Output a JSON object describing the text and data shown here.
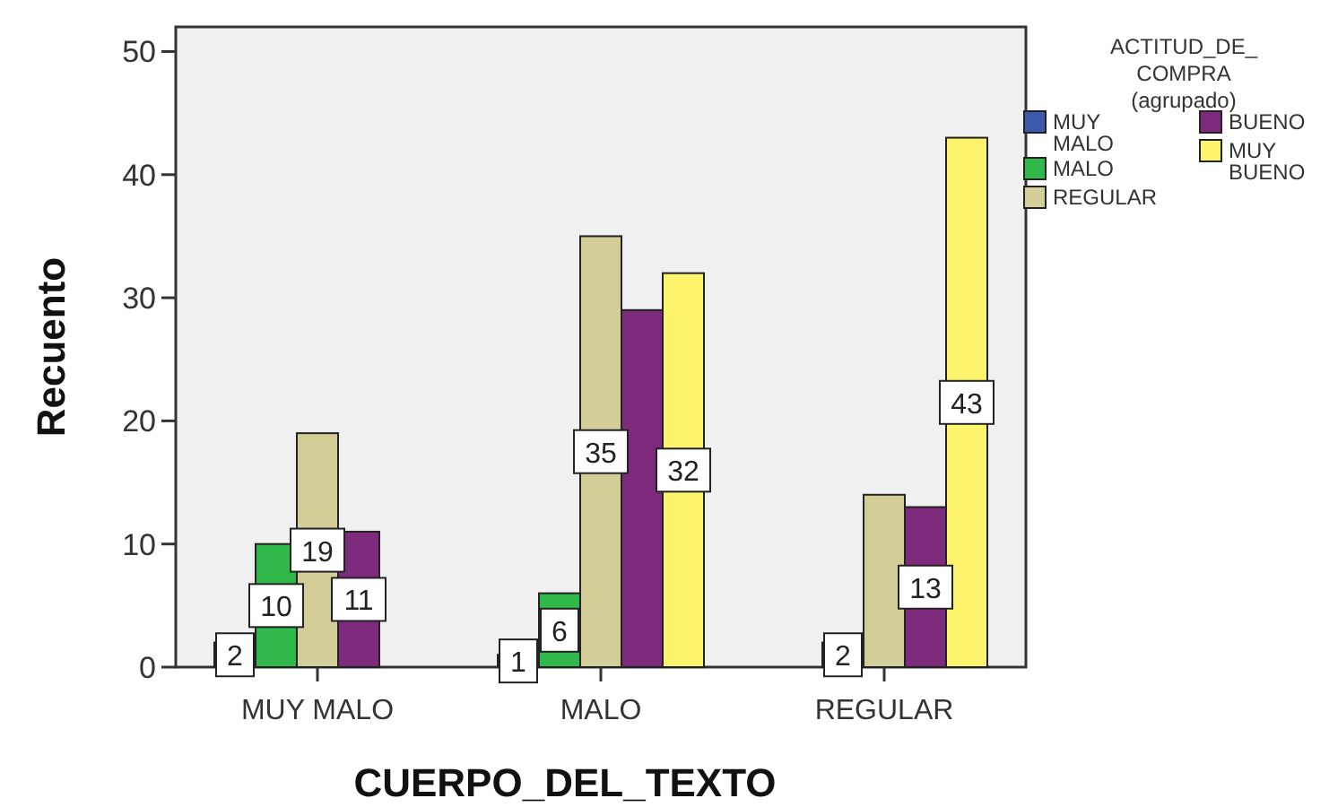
{
  "chart_data": {
    "type": "bar",
    "xlabel": "CUERPO_DEL_TEXTO",
    "ylabel": "Recuento",
    "legend_title": "ACTITUD_DE_ COMPRA (agrupado)",
    "legend": "top right",
    "grid": false,
    "categories": [
      "MUY MALO",
      "MALO",
      "REGULAR"
    ],
    "ylim": [
      0,
      52
    ],
    "yticks": [
      0,
      10,
      20,
      30,
      40,
      50
    ],
    "series": [
      {
        "name": "MUY MALO",
        "color": "#3e58ac",
        "values": [
          2,
          1,
          null
        ],
        "value_labels": [
          "2",
          "1",
          null
        ]
      },
      {
        "name": "MALO",
        "color": "#30b84a",
        "values": [
          10,
          6,
          2
        ],
        "value_labels": [
          "10",
          "6",
          "2"
        ]
      },
      {
        "name": "REGULAR",
        "color": "#d3ce98",
        "values": [
          19,
          35,
          14
        ],
        "value_labels": [
          "19",
          "35",
          null
        ]
      },
      {
        "name": "BUENO",
        "color": "#7d2a7c",
        "values": [
          11,
          29,
          13
        ],
        "value_labels": [
          "11",
          null,
          "13"
        ]
      },
      {
        "name": "MUY BUENO",
        "color": "#fbf46c",
        "values": [
          null,
          32,
          43
        ],
        "value_labels": [
          null,
          "32",
          "43"
        ]
      }
    ]
  }
}
